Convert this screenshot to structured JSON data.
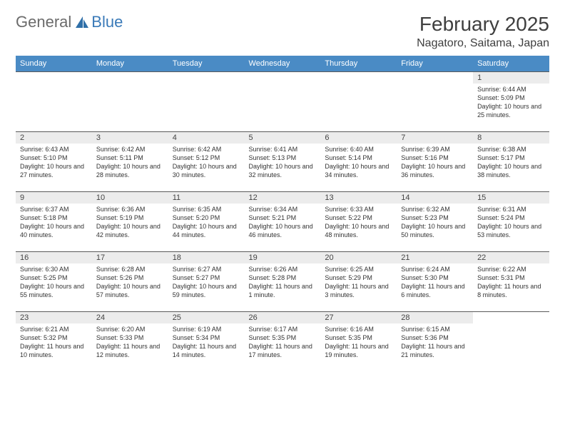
{
  "logo": {
    "text1": "General",
    "text2": "Blue"
  },
  "title": "February 2025",
  "location": "Nagatoro, Saitama, Japan",
  "colors": {
    "header_bg": "#4a8bc5",
    "header_text": "#ffffff",
    "daynum_bg": "#ececec",
    "border": "#5a5a5a",
    "logo_gray": "#6b6b6b",
    "logo_blue": "#3a7ab8"
  },
  "weekdays": [
    "Sunday",
    "Monday",
    "Tuesday",
    "Wednesday",
    "Thursday",
    "Friday",
    "Saturday"
  ],
  "weeks": [
    [
      {
        "day": "",
        "sunrise": "",
        "sunset": "",
        "daylight": ""
      },
      {
        "day": "",
        "sunrise": "",
        "sunset": "",
        "daylight": ""
      },
      {
        "day": "",
        "sunrise": "",
        "sunset": "",
        "daylight": ""
      },
      {
        "day": "",
        "sunrise": "",
        "sunset": "",
        "daylight": ""
      },
      {
        "day": "",
        "sunrise": "",
        "sunset": "",
        "daylight": ""
      },
      {
        "day": "",
        "sunrise": "",
        "sunset": "",
        "daylight": ""
      },
      {
        "day": "1",
        "sunrise": "Sunrise: 6:44 AM",
        "sunset": "Sunset: 5:09 PM",
        "daylight": "Daylight: 10 hours and 25 minutes."
      }
    ],
    [
      {
        "day": "2",
        "sunrise": "Sunrise: 6:43 AM",
        "sunset": "Sunset: 5:10 PM",
        "daylight": "Daylight: 10 hours and 27 minutes."
      },
      {
        "day": "3",
        "sunrise": "Sunrise: 6:42 AM",
        "sunset": "Sunset: 5:11 PM",
        "daylight": "Daylight: 10 hours and 28 minutes."
      },
      {
        "day": "4",
        "sunrise": "Sunrise: 6:42 AM",
        "sunset": "Sunset: 5:12 PM",
        "daylight": "Daylight: 10 hours and 30 minutes."
      },
      {
        "day": "5",
        "sunrise": "Sunrise: 6:41 AM",
        "sunset": "Sunset: 5:13 PM",
        "daylight": "Daylight: 10 hours and 32 minutes."
      },
      {
        "day": "6",
        "sunrise": "Sunrise: 6:40 AM",
        "sunset": "Sunset: 5:14 PM",
        "daylight": "Daylight: 10 hours and 34 minutes."
      },
      {
        "day": "7",
        "sunrise": "Sunrise: 6:39 AM",
        "sunset": "Sunset: 5:16 PM",
        "daylight": "Daylight: 10 hours and 36 minutes."
      },
      {
        "day": "8",
        "sunrise": "Sunrise: 6:38 AM",
        "sunset": "Sunset: 5:17 PM",
        "daylight": "Daylight: 10 hours and 38 minutes."
      }
    ],
    [
      {
        "day": "9",
        "sunrise": "Sunrise: 6:37 AM",
        "sunset": "Sunset: 5:18 PM",
        "daylight": "Daylight: 10 hours and 40 minutes."
      },
      {
        "day": "10",
        "sunrise": "Sunrise: 6:36 AM",
        "sunset": "Sunset: 5:19 PM",
        "daylight": "Daylight: 10 hours and 42 minutes."
      },
      {
        "day": "11",
        "sunrise": "Sunrise: 6:35 AM",
        "sunset": "Sunset: 5:20 PM",
        "daylight": "Daylight: 10 hours and 44 minutes."
      },
      {
        "day": "12",
        "sunrise": "Sunrise: 6:34 AM",
        "sunset": "Sunset: 5:21 PM",
        "daylight": "Daylight: 10 hours and 46 minutes."
      },
      {
        "day": "13",
        "sunrise": "Sunrise: 6:33 AM",
        "sunset": "Sunset: 5:22 PM",
        "daylight": "Daylight: 10 hours and 48 minutes."
      },
      {
        "day": "14",
        "sunrise": "Sunrise: 6:32 AM",
        "sunset": "Sunset: 5:23 PM",
        "daylight": "Daylight: 10 hours and 50 minutes."
      },
      {
        "day": "15",
        "sunrise": "Sunrise: 6:31 AM",
        "sunset": "Sunset: 5:24 PM",
        "daylight": "Daylight: 10 hours and 53 minutes."
      }
    ],
    [
      {
        "day": "16",
        "sunrise": "Sunrise: 6:30 AM",
        "sunset": "Sunset: 5:25 PM",
        "daylight": "Daylight: 10 hours and 55 minutes."
      },
      {
        "day": "17",
        "sunrise": "Sunrise: 6:28 AM",
        "sunset": "Sunset: 5:26 PM",
        "daylight": "Daylight: 10 hours and 57 minutes."
      },
      {
        "day": "18",
        "sunrise": "Sunrise: 6:27 AM",
        "sunset": "Sunset: 5:27 PM",
        "daylight": "Daylight: 10 hours and 59 minutes."
      },
      {
        "day": "19",
        "sunrise": "Sunrise: 6:26 AM",
        "sunset": "Sunset: 5:28 PM",
        "daylight": "Daylight: 11 hours and 1 minute."
      },
      {
        "day": "20",
        "sunrise": "Sunrise: 6:25 AM",
        "sunset": "Sunset: 5:29 PM",
        "daylight": "Daylight: 11 hours and 3 minutes."
      },
      {
        "day": "21",
        "sunrise": "Sunrise: 6:24 AM",
        "sunset": "Sunset: 5:30 PM",
        "daylight": "Daylight: 11 hours and 6 minutes."
      },
      {
        "day": "22",
        "sunrise": "Sunrise: 6:22 AM",
        "sunset": "Sunset: 5:31 PM",
        "daylight": "Daylight: 11 hours and 8 minutes."
      }
    ],
    [
      {
        "day": "23",
        "sunrise": "Sunrise: 6:21 AM",
        "sunset": "Sunset: 5:32 PM",
        "daylight": "Daylight: 11 hours and 10 minutes."
      },
      {
        "day": "24",
        "sunrise": "Sunrise: 6:20 AM",
        "sunset": "Sunset: 5:33 PM",
        "daylight": "Daylight: 11 hours and 12 minutes."
      },
      {
        "day": "25",
        "sunrise": "Sunrise: 6:19 AM",
        "sunset": "Sunset: 5:34 PM",
        "daylight": "Daylight: 11 hours and 14 minutes."
      },
      {
        "day": "26",
        "sunrise": "Sunrise: 6:17 AM",
        "sunset": "Sunset: 5:35 PM",
        "daylight": "Daylight: 11 hours and 17 minutes."
      },
      {
        "day": "27",
        "sunrise": "Sunrise: 6:16 AM",
        "sunset": "Sunset: 5:35 PM",
        "daylight": "Daylight: 11 hours and 19 minutes."
      },
      {
        "day": "28",
        "sunrise": "Sunrise: 6:15 AM",
        "sunset": "Sunset: 5:36 PM",
        "daylight": "Daylight: 11 hours and 21 minutes."
      },
      {
        "day": "",
        "sunrise": "",
        "sunset": "",
        "daylight": ""
      }
    ]
  ]
}
